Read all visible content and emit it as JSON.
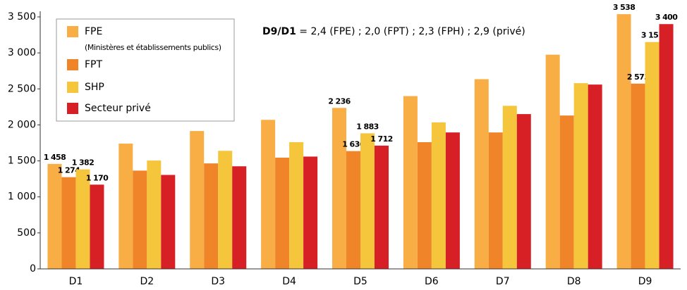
{
  "chart_data": {
    "type": "bar",
    "annotation": {
      "bold": "D9/D1",
      "text": " = 2,4 (FPE) ; 2,0 (FPT) ; 2,3 (FPH) ; 2,9 (privé)"
    },
    "legend_note": "(Ministères et établissements publics)",
    "categories": [
      "D1",
      "D2",
      "D3",
      "D4",
      "D5",
      "D6",
      "D7",
      "D8",
      "D9"
    ],
    "series": [
      {
        "name": "FPE",
        "color": "#f9ae45",
        "values": [
          1458,
          1740,
          1915,
          2070,
          2236,
          2400,
          2635,
          2975,
          3538
        ],
        "value_labels": [
          "1 458",
          null,
          null,
          null,
          "2 236",
          null,
          null,
          null,
          "3 538"
        ]
      },
      {
        "name": "FPT",
        "color": "#f08429",
        "values": [
          1274,
          1365,
          1465,
          1545,
          1636,
          1760,
          1895,
          2130,
          2573
        ],
        "value_labels": [
          "1 274",
          null,
          null,
          null,
          "1 636",
          null,
          null,
          null,
          "2 573"
        ]
      },
      {
        "name": "SHP",
        "color": "#f5c63c",
        "values": [
          1382,
          1505,
          1640,
          1760,
          1883,
          2035,
          2265,
          2580,
          3151
        ],
        "value_labels": [
          "1 382",
          null,
          null,
          null,
          "1 883",
          null,
          null,
          null,
          "3 151"
        ]
      },
      {
        "name": "Secteur privé",
        "color": "#d71f26",
        "values": [
          1170,
          1305,
          1425,
          1560,
          1712,
          1895,
          2150,
          2560,
          3400
        ],
        "value_labels": [
          "1 170",
          null,
          null,
          null,
          "1 712",
          null,
          null,
          null,
          "3 400"
        ]
      }
    ],
    "ylim": [
      0,
      3500
    ],
    "yticks": [
      0,
      500,
      {
        "value": 1000,
        "label": "1 000"
      },
      {
        "value": 1500,
        "label": "1 500"
      },
      {
        "value": 2000,
        "label": "2 000"
      },
      {
        "value": 2500,
        "label": "2 500"
      },
      {
        "value": 3000,
        "label": "3 000"
      },
      {
        "value": 3500,
        "label": "3 500"
      }
    ],
    "grid": false
  }
}
